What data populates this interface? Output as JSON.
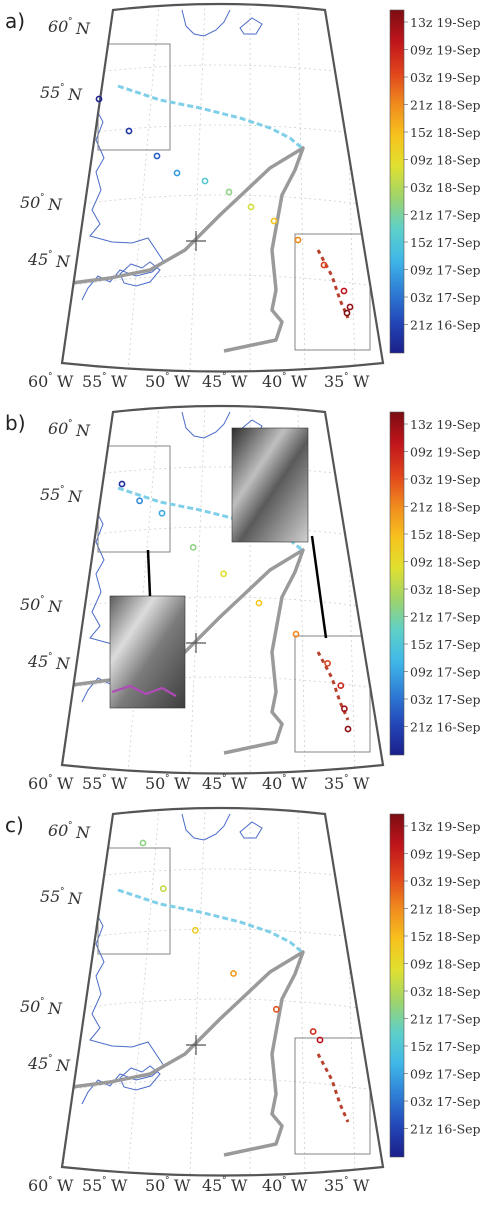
{
  "panels": [
    {
      "label": "a)",
      "lat_labels": [
        {
          "text": "60",
          "unit": "N"
        },
        {
          "text": "55",
          "unit": "N"
        },
        {
          "text": "50",
          "unit": "N"
        },
        {
          "text": "45",
          "unit": "N"
        }
      ],
      "lon_labels": [
        {
          "text": "60",
          "unit": "W"
        },
        {
          "text": "55",
          "unit": "W"
        },
        {
          "text": "50",
          "unit": "W"
        },
        {
          "text": "45",
          "unit": "W"
        },
        {
          "text": "40",
          "unit": "W"
        },
        {
          "text": "35",
          "unit": "W"
        }
      ],
      "track_circles": [
        {
          "t": 0.01
        },
        {
          "t": 0.05
        },
        {
          "t": 0.13
        },
        {
          "t": 0.23
        },
        {
          "t": 0.33
        },
        {
          "t": 0.43
        },
        {
          "t": 0.53
        },
        {
          "t": 0.63
        },
        {
          "t": 0.73
        },
        {
          "t": 0.83
        },
        {
          "t": 0.91
        },
        {
          "t": 0.97
        },
        {
          "t": 1.0
        }
      ],
      "has_insets": false
    },
    {
      "label": "b)",
      "lat_labels": [
        {
          "text": "60",
          "unit": "N"
        },
        {
          "text": "55",
          "unit": "N"
        },
        {
          "text": "50",
          "unit": "N"
        },
        {
          "text": "45",
          "unit": "N"
        }
      ],
      "lon_labels": [
        {
          "text": "60",
          "unit": "W"
        },
        {
          "text": "55",
          "unit": "W"
        },
        {
          "text": "50",
          "unit": "W"
        },
        {
          "text": "45",
          "unit": "W"
        },
        {
          "text": "40",
          "unit": "W"
        },
        {
          "text": "35",
          "unit": "W"
        }
      ],
      "track_circles": [
        {
          "t": 0.03
        },
        {
          "t": 0.2
        },
        {
          "t": 0.25
        },
        {
          "t": 0.43
        },
        {
          "t": 0.55
        },
        {
          "t": 0.62
        },
        {
          "t": 0.73
        },
        {
          "t": 0.82
        },
        {
          "t": 0.88
        },
        {
          "t": 0.95
        },
        {
          "t": 0.98
        }
      ],
      "has_insets": true
    },
    {
      "label": "c)",
      "lat_labels": [
        {
          "text": "60",
          "unit": "N"
        },
        {
          "text": "55",
          "unit": "N"
        },
        {
          "text": "50",
          "unit": "N"
        },
        {
          "text": "45",
          "unit": "N"
        }
      ],
      "lon_labels": [
        {
          "text": "60",
          "unit": "W"
        },
        {
          "text": "55",
          "unit": "W"
        },
        {
          "text": "50",
          "unit": "W"
        },
        {
          "text": "45",
          "unit": "W"
        },
        {
          "text": "40",
          "unit": "W"
        },
        {
          "text": "35",
          "unit": "W"
        }
      ],
      "track_circles": [
        {
          "t": 0.43
        },
        {
          "t": 0.5
        },
        {
          "t": 0.6
        },
        {
          "t": 0.7
        },
        {
          "t": 0.8
        },
        {
          "t": 0.86
        },
        {
          "t": 0.92
        }
      ],
      "has_insets": false
    }
  ],
  "colorbar": {
    "labels": [
      "13z 19-Sep",
      "09z 19-Sep",
      "03z 19-Sep",
      "21z 18-Sep",
      "15z 18-Sep",
      "09z 18-Sep",
      "03z 18-Sep",
      "21z 17-Sep",
      "15z 17-Sep",
      "09z 17-Sep",
      "03z 17-Sep",
      "21z 16-Sep"
    ],
    "colormap": [
      "#1b1f8a",
      "#2347b8",
      "#2f7fd6",
      "#3fb8e8",
      "#5fd0c8",
      "#9fd46a",
      "#e0e030",
      "#f7c11d",
      "#f08a1e",
      "#e0431c",
      "#c0141b",
      "#7a0d12"
    ]
  },
  "colors": {
    "frame": "#555555",
    "coast": "#4a6bc9",
    "track": "#9a9a9a",
    "cyan_track": "#7fcfe8",
    "grid": "#cfcfcf",
    "box": "#777777",
    "inset_purple": "#b04ab8"
  },
  "icons": {
    "crosshair": "plus-marker-icon"
  }
}
